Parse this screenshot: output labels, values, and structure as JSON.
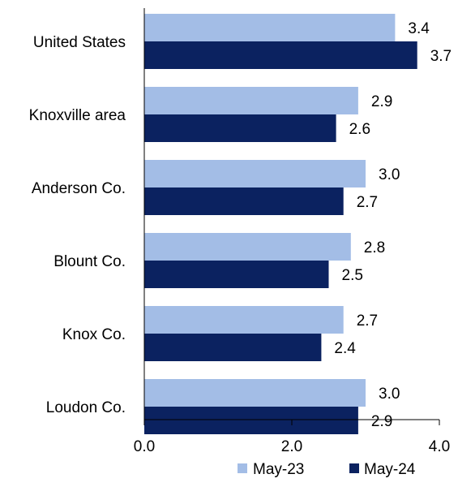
{
  "colors": {
    "May-23": "#a3bde6",
    "May-24": "#0b2260",
    "axis": "#000000",
    "text": "#000000"
  },
  "chart_data": {
    "type": "bar",
    "orientation": "horizontal",
    "categories": [
      "United States",
      "Knoxville area",
      "Anderson Co.",
      "Blount Co.",
      "Knox Co.",
      "Loudon Co."
    ],
    "series": [
      {
        "name": "May-23",
        "values": [
          3.4,
          2.9,
          3.0,
          2.8,
          2.7,
          3.0
        ],
        "labels": [
          "3.4",
          "2.9",
          "3.0",
          "2.8",
          "2.7",
          "3.0"
        ]
      },
      {
        "name": "May-24",
        "values": [
          3.7,
          2.6,
          2.7,
          2.5,
          2.4,
          2.9
        ],
        "labels": [
          "3.7",
          "2.6",
          "2.7",
          "2.5",
          "2.4",
          "2.9"
        ]
      }
    ],
    "xlim": [
      0,
      4
    ],
    "xticks": [
      0,
      2,
      4
    ],
    "xtick_labels": [
      "0.0",
      "2.0",
      "4.0"
    ],
    "title": "",
    "xlabel": "",
    "ylabel": "",
    "grid": false,
    "legend_position": "bottom-right"
  }
}
